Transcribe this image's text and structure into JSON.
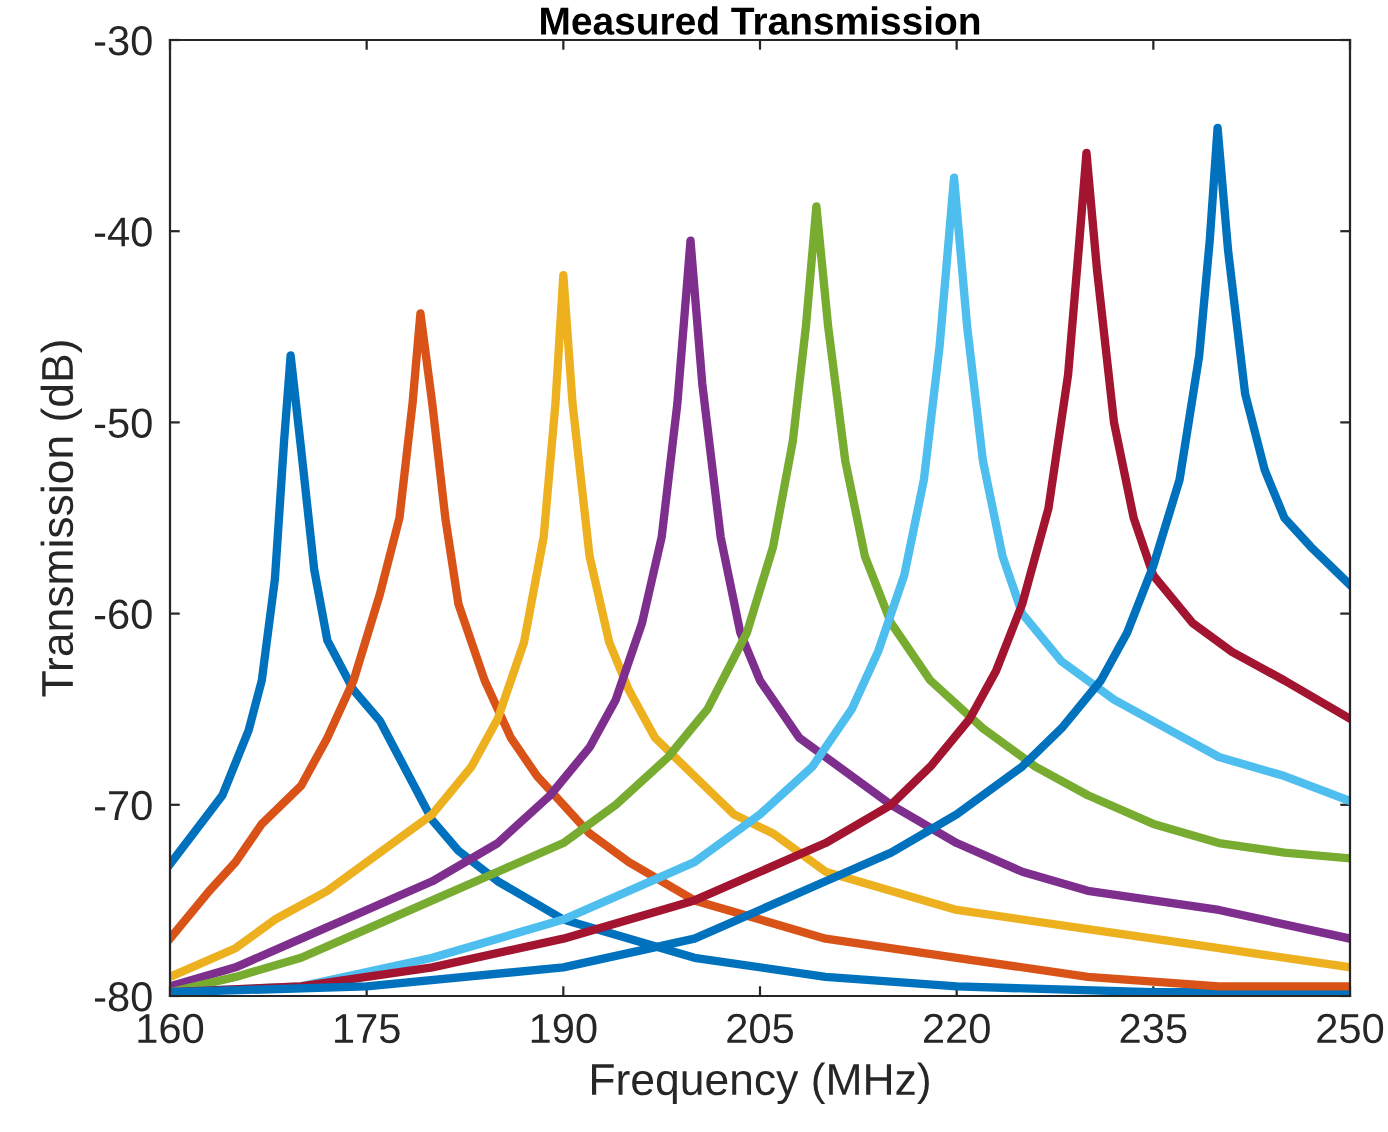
{
  "chart_data": {
    "type": "line",
    "title": "Measured Transmission",
    "xlabel": "Frequency (MHz)",
    "ylabel": "Transmission (dB)",
    "xlim": [
      160,
      250
    ],
    "xticks": [
      160,
      175,
      190,
      205,
      220,
      235,
      250
    ],
    "ylim": [
      -80,
      -30
    ],
    "yticks": [
      -80,
      -70,
      -60,
      -50,
      -40,
      -30
    ],
    "grid": false,
    "marker": "none",
    "line_style": "solid",
    "series": [
      {
        "color": "#0072bd",
        "x": [
          160,
          162,
          164,
          166,
          167,
          168,
          168.7,
          169.2,
          170,
          171,
          172,
          174,
          176,
          178,
          180,
          182,
          185,
          190,
          200,
          210,
          220,
          235,
          250
        ],
        "values": [
          -73.1,
          -71.3,
          -69.5,
          -66.1,
          -63.5,
          -58.2,
          -51,
          -46.5,
          -51.4,
          -57.7,
          -61.4,
          -64,
          -65.6,
          -68.2,
          -70.8,
          -72.4,
          -74,
          -76,
          -78,
          -79,
          -79.5,
          -79.8,
          -79.8
        ]
      },
      {
        "color": "#d95319",
        "x": [
          160,
          163,
          165,
          167,
          170,
          172,
          174,
          176,
          177.5,
          178.5,
          179.1,
          180,
          181,
          182,
          184,
          186,
          188,
          190,
          192,
          195,
          200,
          210,
          220,
          230,
          240,
          250
        ],
        "values": [
          -77,
          -74.5,
          -73,
          -71,
          -69,
          -66.5,
          -63.5,
          -59,
          -55,
          -49,
          -44.3,
          -49,
          -55,
          -59.5,
          -63.5,
          -66.5,
          -68.5,
          -70,
          -71.5,
          -73,
          -75,
          -77,
          -78,
          -79,
          -79.5,
          -79.5
        ]
      },
      {
        "color": "#edb120",
        "x": [
          160,
          165,
          168,
          172,
          176,
          180,
          183,
          185,
          187,
          188.5,
          189.4,
          190,
          190.7,
          192,
          193.5,
          195,
          197,
          200,
          203,
          206,
          210,
          220,
          230,
          240,
          250
        ],
        "values": [
          -79,
          -77.5,
          -76,
          -74.5,
          -72.5,
          -70.5,
          -68,
          -65.5,
          -61.5,
          -56,
          -49,
          -42.3,
          -49,
          -57,
          -61.5,
          -64,
          -66.5,
          -68.5,
          -70.5,
          -71.5,
          -73.5,
          -75.5,
          -76.5,
          -77.5,
          -78.5
        ]
      },
      {
        "color": "#7e2f8e",
        "x": [
          160,
          165,
          170,
          175,
          180,
          185,
          189,
          192,
          194,
          196,
          197.5,
          198.7,
          199.7,
          200.6,
          202,
          203.5,
          205,
          208,
          212,
          215,
          220,
          225,
          230,
          240,
          250
        ],
        "values": [
          -79.5,
          -78.5,
          -77,
          -75.5,
          -74,
          -72,
          -69.5,
          -67,
          -64.5,
          -60.5,
          -56,
          -49,
          -40.5,
          -48,
          -56,
          -61,
          -63.5,
          -66.5,
          -68.5,
          -70,
          -72,
          -73.5,
          -74.5,
          -75.5,
          -77
        ]
      },
      {
        "color": "#77ac30",
        "x": [
          160,
          165,
          170,
          175,
          180,
          185,
          190,
          194,
          198,
          201,
          204,
          206,
          207.5,
          208.5,
          209.3,
          210.2,
          211.5,
          213,
          215,
          218,
          222,
          226,
          230,
          235,
          240,
          245,
          250
        ],
        "values": [
          -79.8,
          -79,
          -78,
          -76.5,
          -75,
          -73.5,
          -72,
          -70,
          -67.5,
          -65,
          -61,
          -56.5,
          -51,
          -45,
          -38.7,
          -45,
          -52,
          -57,
          -60.5,
          -63.5,
          -66,
          -68,
          -69.5,
          -71,
          -72,
          -72.5,
          -72.8
        ]
      },
      {
        "color": "#4dbeee",
        "x": [
          160,
          170,
          180,
          190,
          195,
          200,
          205,
          209,
          212,
          214,
          216,
          217.5,
          218.7,
          219.8,
          220.8,
          222,
          223.5,
          225,
          228,
          232,
          236,
          240,
          245,
          250
        ],
        "values": [
          -79.8,
          -79.5,
          -78,
          -76,
          -74.5,
          -73,
          -70.5,
          -68,
          -65,
          -62,
          -58,
          -53,
          -46,
          -37.2,
          -45,
          -52,
          -57,
          -60,
          -62.5,
          -64.5,
          -66,
          -67.5,
          -68.5,
          -69.8
        ]
      },
      {
        "color": "#a2142f",
        "x": [
          160,
          170,
          180,
          190,
          200,
          205,
          210,
          215,
          218,
          221,
          223,
          225,
          227,
          228.5,
          229.3,
          229.9,
          230.7,
          232,
          233.5,
          235,
          238,
          241,
          245,
          250
        ],
        "values": [
          -79.8,
          -79.5,
          -78.5,
          -77,
          -75,
          -73.5,
          -72,
          -70,
          -68,
          -65.5,
          -63,
          -59.5,
          -54.5,
          -47.5,
          -41,
          -35.9,
          -42,
          -50,
          -55,
          -58,
          -60.5,
          -62,
          -63.5,
          -65.5
        ]
      },
      {
        "color": "#0072bd",
        "x": [
          160,
          175,
          190,
          200,
          205,
          210,
          215,
          220,
          225,
          228,
          231,
          233,
          235,
          237,
          238.5,
          239.3,
          239.9,
          240.7,
          242,
          243.5,
          245,
          247,
          250
        ],
        "values": [
          -79.8,
          -79.5,
          -78.5,
          -77,
          -75.5,
          -74,
          -72.5,
          -70.5,
          -68,
          -66,
          -63.5,
          -61,
          -57.5,
          -53,
          -46.5,
          -40.5,
          -34.6,
          -41,
          -48.5,
          -52.5,
          -55,
          -56.5,
          -58.5
        ]
      }
    ]
  }
}
